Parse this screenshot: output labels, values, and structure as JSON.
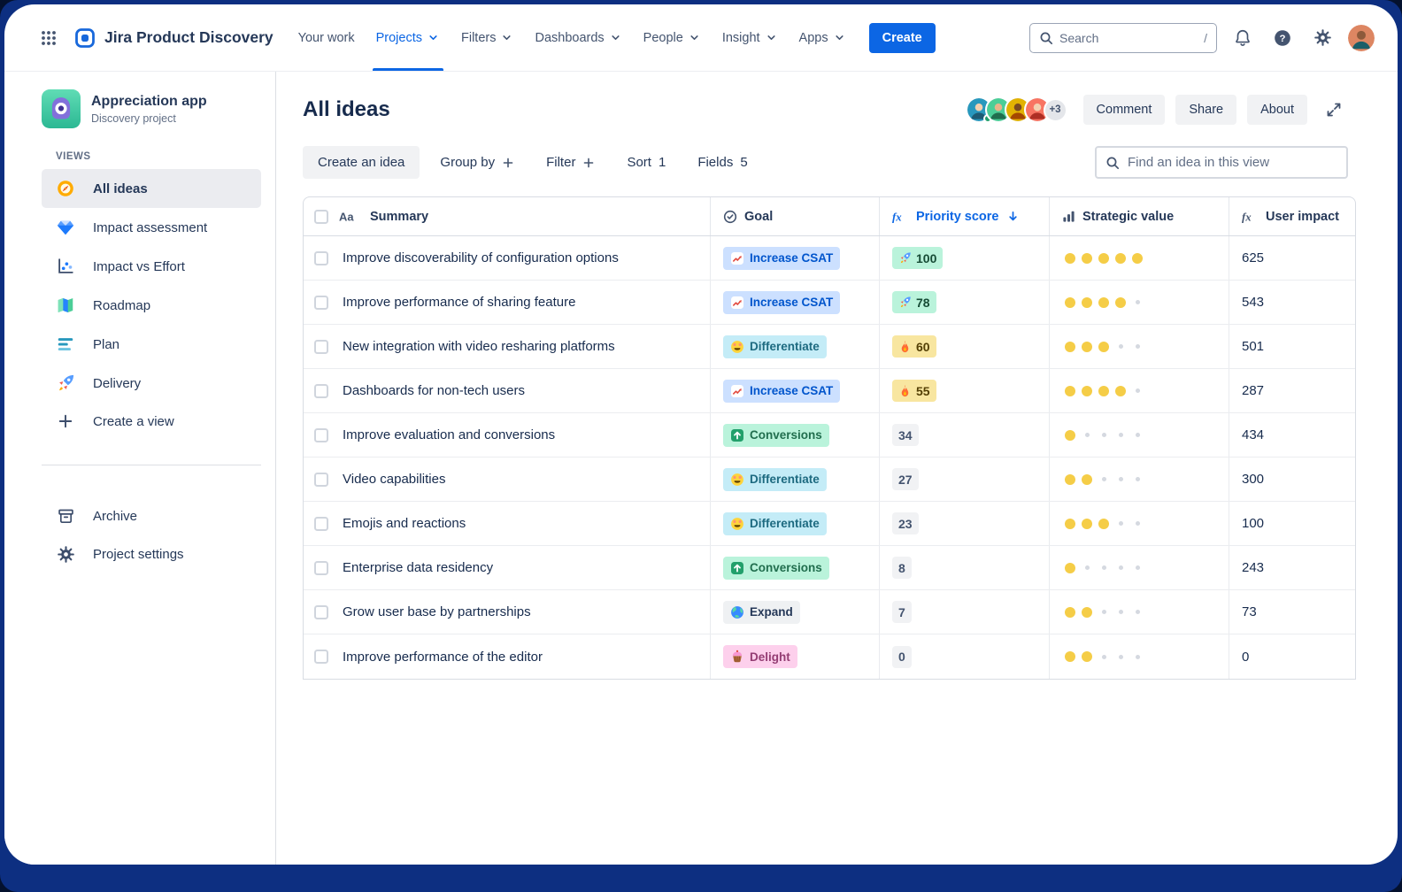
{
  "colors": {
    "accent": "#0c66e4",
    "dot_filled": "#f5cd47",
    "score_green_bg": "#baf3db",
    "score_yellow_bg": "#f8e6a0"
  },
  "topnav": {
    "app_name": "Jira Product Discovery",
    "nav_items": [
      {
        "label": "Your work",
        "chevron": false,
        "active": false
      },
      {
        "label": "Projects",
        "chevron": true,
        "active": true
      },
      {
        "label": "Filters",
        "chevron": true,
        "active": false
      },
      {
        "label": "Dashboards",
        "chevron": true,
        "active": false
      },
      {
        "label": "People",
        "chevron": true,
        "active": false
      },
      {
        "label": "Insight",
        "chevron": true,
        "active": false
      },
      {
        "label": "Apps",
        "chevron": true,
        "active": false
      }
    ],
    "create_button": "Create",
    "search": {
      "placeholder": "Search",
      "shortcut": "/"
    },
    "user_avatar": {
      "bg": "#dd8662",
      "skin": "#8d5a3b",
      "shirt": "#1b5e68"
    }
  },
  "sidebar": {
    "project": {
      "name": "Appreciation app",
      "type": "Discovery project"
    },
    "section_label": "VIEWS",
    "views": [
      {
        "label": "All ideas",
        "icon": "compass-icon",
        "active": true
      },
      {
        "label": "Impact assessment",
        "icon": "diamond-icon",
        "active": false
      },
      {
        "label": "Impact vs Effort",
        "icon": "scatter-icon",
        "active": false
      },
      {
        "label": "Roadmap",
        "icon": "map-icon",
        "active": false
      },
      {
        "label": "Plan",
        "icon": "plan-icon",
        "active": false
      },
      {
        "label": "Delivery",
        "icon": "rocket-icon",
        "active": false
      },
      {
        "label": "Create a view",
        "icon": "plus-icon",
        "active": false
      }
    ],
    "footer_items": [
      {
        "label": "Archive",
        "icon": "archive-icon"
      },
      {
        "label": "Project settings",
        "icon": "gear-icon"
      }
    ]
  },
  "header": {
    "title": "All ideas",
    "avatars": [
      {
        "bg": "#2898bd",
        "skin": "#f3d0b0",
        "shirt": "#1d5b73",
        "presence": true
      },
      {
        "bg": "#4bce97",
        "skin": "#e8b48a",
        "shirt": "#216e4e",
        "presence": false
      },
      {
        "bg": "#e2b203",
        "skin": "#7a4a21",
        "shirt": "#a54800",
        "presence": false
      },
      {
        "bg": "#f87462",
        "skin": "#f3d0b0",
        "shirt": "#ae2e24",
        "presence": false
      }
    ],
    "avatars_overflow": "+3",
    "buttons": [
      "Comment",
      "Share",
      "About"
    ]
  },
  "toolbar": {
    "create_idea": "Create an idea",
    "group_by": "Group by",
    "filter": "Filter",
    "sort": "Sort",
    "sort_count": "1",
    "fields": "Fields",
    "fields_count": "5",
    "find_placeholder": "Find an idea in this view"
  },
  "table": {
    "columns": [
      {
        "label": "Summary",
        "icon": "text-style-icon",
        "sorted": false
      },
      {
        "label": "Goal",
        "icon": "goal-icon",
        "sorted": false
      },
      {
        "label": "Priority score",
        "icon": "formula-icon",
        "sorted": true
      },
      {
        "label": "Strategic value",
        "icon": "bars-icon",
        "sorted": false
      },
      {
        "label": "User impact",
        "icon": "formula-icon",
        "sorted": false
      }
    ],
    "strategic_max_dots": 5,
    "rows": [
      {
        "summary": "Improve discoverability of configuration options",
        "goal": {
          "label": "Increase CSAT",
          "type": "csat"
        },
        "priority": {
          "value": "100",
          "style": "green",
          "icon": "rocket"
        },
        "strategic_value": 5,
        "user_impact": "625"
      },
      {
        "summary": "Improve performance of sharing feature",
        "goal": {
          "label": "Increase CSAT",
          "type": "csat"
        },
        "priority": {
          "value": "78",
          "style": "green",
          "icon": "rocket"
        },
        "strategic_value": 4,
        "user_impact": "543"
      },
      {
        "summary": "New integration with video resharing platforms",
        "goal": {
          "label": "Differentiate",
          "type": "differentiate"
        },
        "priority": {
          "value": "60",
          "style": "yellow",
          "icon": "fire"
        },
        "strategic_value": 3,
        "user_impact": "501"
      },
      {
        "summary": "Dashboards for non-tech users",
        "goal": {
          "label": "Increase CSAT",
          "type": "csat"
        },
        "priority": {
          "value": "55",
          "style": "yellow",
          "icon": "fire"
        },
        "strategic_value": 4,
        "user_impact": "287"
      },
      {
        "summary": "Improve evaluation and conversions",
        "goal": {
          "label": "Conversions",
          "type": "conversions"
        },
        "priority": {
          "value": "34",
          "style": "gray",
          "icon": null
        },
        "strategic_value": 1,
        "user_impact": "434"
      },
      {
        "summary": "Video capabilities",
        "goal": {
          "label": "Differentiate",
          "type": "differentiate"
        },
        "priority": {
          "value": "27",
          "style": "gray",
          "icon": null
        },
        "strategic_value": 2,
        "user_impact": "300"
      },
      {
        "summary": "Emojis and reactions",
        "goal": {
          "label": "Differentiate",
          "type": "differentiate"
        },
        "priority": {
          "value": "23",
          "style": "gray",
          "icon": null
        },
        "strategic_value": 3,
        "user_impact": "100"
      },
      {
        "summary": "Enterprise data residency",
        "goal": {
          "label": "Conversions",
          "type": "conversions"
        },
        "priority": {
          "value": "8",
          "style": "gray",
          "icon": null
        },
        "strategic_value": 1,
        "user_impact": "243"
      },
      {
        "summary": "Grow user base by partnerships",
        "goal": {
          "label": "Expand",
          "type": "expand"
        },
        "priority": {
          "value": "7",
          "style": "gray",
          "icon": null
        },
        "strategic_value": 2,
        "user_impact": "73"
      },
      {
        "summary": "Improve performance of the editor",
        "goal": {
          "label": "Delight",
          "type": "delight"
        },
        "priority": {
          "value": "0",
          "style": "gray",
          "icon": null
        },
        "strategic_value": 2,
        "user_impact": "0"
      }
    ]
  }
}
